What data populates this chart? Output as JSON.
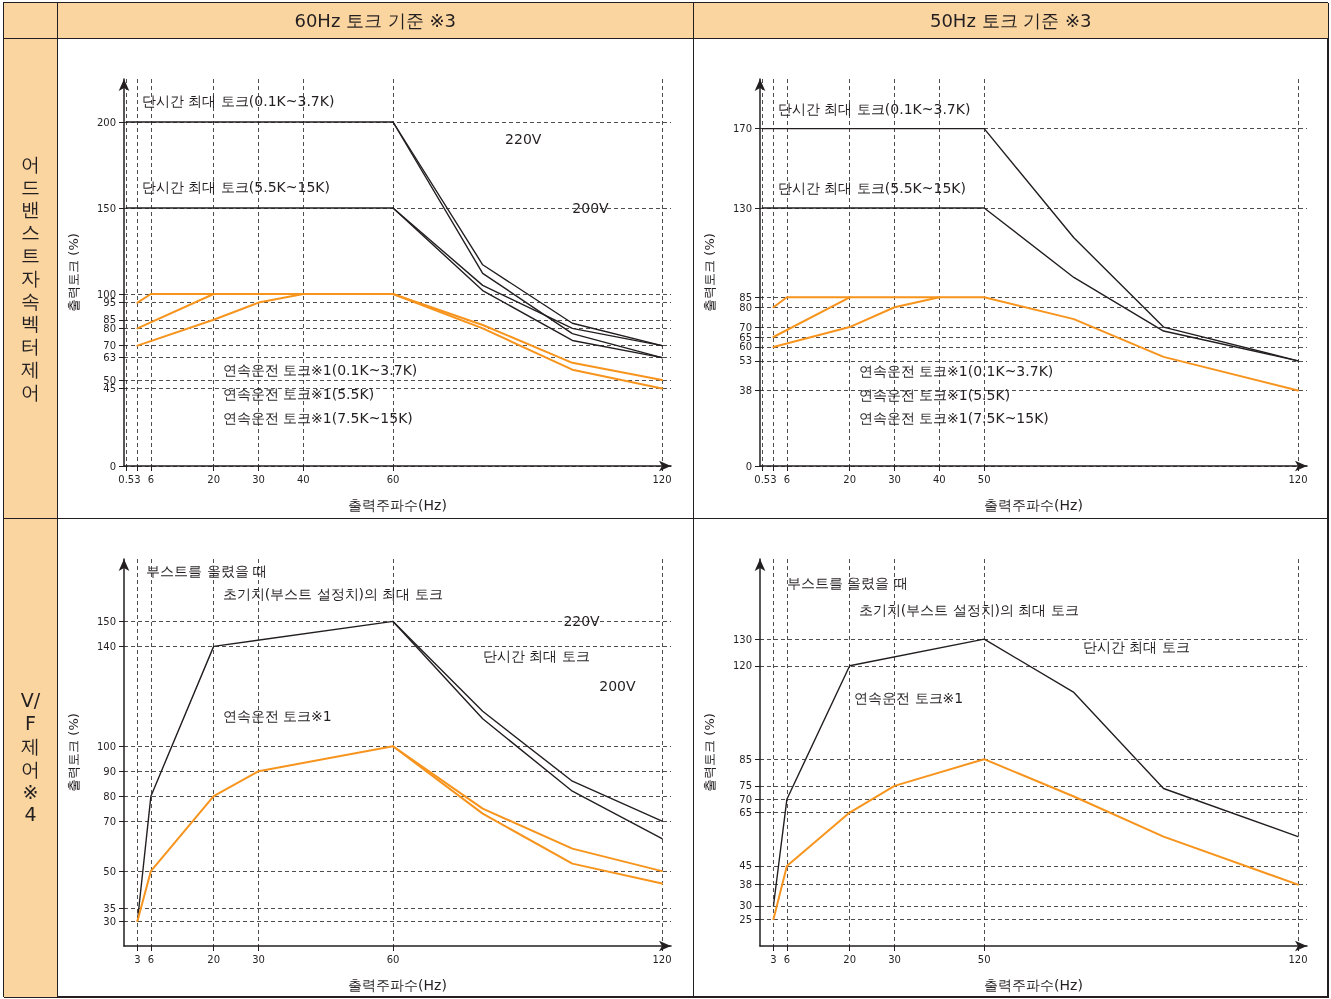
{
  "chart_data": [
    {
      "type": "line",
      "title": "60Hz 토크 기준 ※3",
      "xlabel": "출력주파수(Hz)",
      "ylabel": "출력토크 (%)",
      "xlim": [
        0,
        122
      ],
      "ylim": [
        0,
        225
      ],
      "xticks": [
        0.5,
        3,
        6,
        20,
        30,
        40,
        60,
        120
      ],
      "yticks": [
        0,
        45,
        50,
        63,
        70,
        80,
        85,
        95,
        100,
        150,
        200
      ],
      "grid": true,
      "marker": "none",
      "line_style": "solid",
      "series": [
        {
          "color": "#231f20",
          "x": [
            0.5,
            60,
            80,
            100,
            120
          ],
          "values": [
            200,
            200,
            117,
            83,
            70
          ]
        },
        {
          "color": "#231f20",
          "x": [
            60,
            80,
            100,
            120
          ],
          "values": [
            200,
            112,
            77,
            63
          ]
        },
        {
          "color": "#231f20",
          "x": [
            0.5,
            60,
            80,
            100,
            120
          ],
          "values": [
            150,
            150,
            105,
            80,
            70
          ]
        },
        {
          "color": "#231f20",
          "x": [
            60,
            80,
            100,
            120
          ],
          "values": [
            150,
            102,
            73,
            63
          ]
        },
        {
          "color": "#f7941d",
          "x": [
            3,
            6,
            60,
            80,
            100,
            120
          ],
          "values": [
            95,
            100,
            100,
            82,
            60,
            50
          ]
        },
        {
          "color": "#f7941d",
          "x": [
            60,
            80,
            100,
            120
          ],
          "values": [
            100,
            80,
            56,
            45
          ]
        },
        {
          "color": "#f7941d",
          "x": [
            3,
            20
          ],
          "values": [
            80,
            100
          ]
        },
        {
          "color": "#f7941d",
          "x": [
            3,
            20,
            30,
            40
          ],
          "values": [
            70,
            85,
            95,
            100
          ]
        }
      ],
      "annotations": [
        "어드밴스트 자속 벡터 제어",
        "단시간 최대 토크(0.1K~3.7K)",
        "단시간 최대 토크(5.5K~15K)",
        "220V",
        "200V",
        "연속운전 토크※1(0.1K~3.7K)",
        "연속운전 토크※1(5.5K)",
        "연속운전 토크※1(7.5K~15K)"
      ]
    },
    {
      "type": "line",
      "title": "50Hz 토크 기준 ※3",
      "xlabel": "출력주파수(Hz)",
      "ylabel": "출력토크 (%)",
      "xlim": [
        0,
        122
      ],
      "ylim": [
        0,
        195
      ],
      "xticks": [
        0.5,
        3,
        6,
        20,
        30,
        40,
        50,
        120
      ],
      "yticks": [
        0,
        38,
        53,
        60,
        65,
        70,
        80,
        85,
        130,
        170
      ],
      "grid": true,
      "marker": "none",
      "line_style": "solid",
      "series": [
        {
          "color": "#231f20",
          "x": [
            0.5,
            50,
            70,
            90,
            120
          ],
          "values": [
            170,
            170,
            115,
            70,
            53
          ]
        },
        {
          "color": "#231f20",
          "x": [
            0.5,
            50,
            70,
            90,
            120
          ],
          "values": [
            130,
            130,
            95,
            68,
            53
          ]
        },
        {
          "color": "#f7941d",
          "x": [
            3,
            6,
            50,
            70,
            90,
            120
          ],
          "values": [
            80,
            85,
            85,
            74,
            55,
            38
          ]
        },
        {
          "color": "#f7941d",
          "x": [
            3,
            20
          ],
          "values": [
            65,
            85
          ]
        },
        {
          "color": "#f7941d",
          "x": [
            3,
            20,
            30,
            40
          ],
          "values": [
            60,
            70,
            80,
            85
          ]
        }
      ],
      "annotations": [
        "단시간 최대 토크(0.1K~3.7K)",
        "단시간 최대 토크(5.5K~15K)",
        "연속운전 토크※1(0.1K~3.7K)",
        "연속운전 토크※1(5.5K)",
        "연속운전 토크※1(7.5K~15K)"
      ]
    },
    {
      "type": "line",
      "xlabel": "출력주파수(Hz)",
      "ylabel": "출력토크 (%)",
      "xlim": [
        0,
        122
      ],
      "ylim": [
        20,
        175
      ],
      "xticks": [
        3,
        6,
        20,
        30,
        60,
        120
      ],
      "yticks": [
        30,
        35,
        50,
        70,
        80,
        90,
        100,
        140,
        150
      ],
      "grid": true,
      "marker": "none",
      "line_style": "solid",
      "series": [
        {
          "color": "#231f20",
          "x": [
            3,
            6,
            20,
            60,
            80,
            100,
            120
          ],
          "values": [
            30,
            80,
            140,
            150,
            114,
            86,
            70
          ]
        },
        {
          "color": "#231f20",
          "x": [
            60,
            80,
            100,
            120
          ],
          "values": [
            150,
            111,
            82,
            63
          ]
        },
        {
          "color": "#f7941d",
          "x": [
            3,
            6,
            20,
            30,
            60,
            80,
            100,
            120
          ],
          "values": [
            30,
            50,
            80,
            90,
            100,
            75,
            59,
            50
          ]
        },
        {
          "color": "#f7941d",
          "x": [
            60,
            80,
            100,
            120
          ],
          "values": [
            100,
            73,
            53,
            45
          ]
        }
      ],
      "annotations": [
        "V/F 제어 ※4",
        "부스트를 올렸을 때",
        "초기치(부스트 설정치)의 최대 토크",
        "단시간 최대 토크",
        "220V",
        "200V",
        "연속운전 토크※1"
      ]
    },
    {
      "type": "line",
      "xlabel": "출력주파수(Hz)",
      "ylabel": "출력토크 (%)",
      "xlim": [
        0,
        122
      ],
      "ylim": [
        15,
        160
      ],
      "xticks": [
        3,
        6,
        20,
        30,
        50,
        120
      ],
      "yticks": [
        25,
        30,
        38,
        45,
        65,
        70,
        75,
        85,
        120,
        130
      ],
      "grid": true,
      "marker": "none",
      "line_style": "solid",
      "series": [
        {
          "color": "#231f20",
          "x": [
            3,
            6,
            20,
            50,
            70,
            90,
            120
          ],
          "values": [
            30,
            70,
            120,
            130,
            110,
            74,
            56
          ]
        },
        {
          "color": "#f7941d",
          "x": [
            3,
            6,
            20,
            30,
            50,
            70,
            90,
            120
          ],
          "values": [
            25,
            45,
            65,
            75,
            85,
            71,
            56,
            38
          ]
        }
      ],
      "annotations": [
        "부스트를 올렸을 때",
        "초기치(부스트 설정치)의 최대 토크",
        "연속운전 토크※1",
        "단시간 최대 토크"
      ]
    }
  ]
}
